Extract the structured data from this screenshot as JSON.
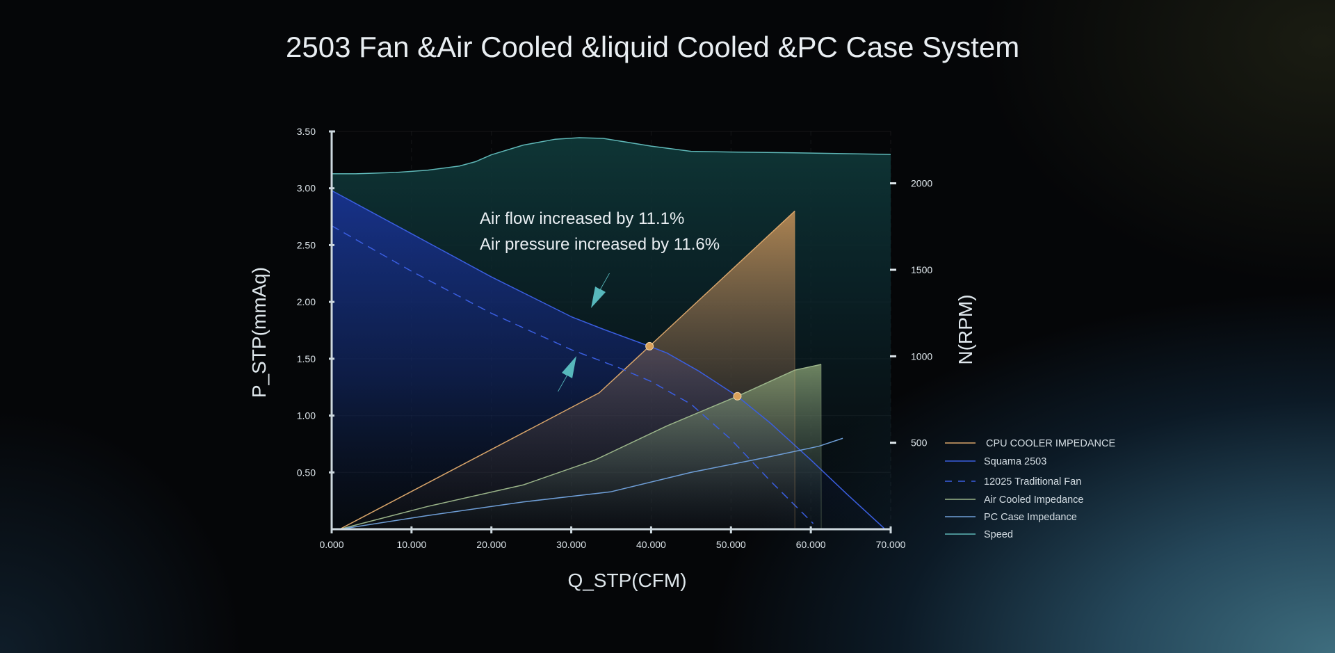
{
  "title": "2503 Fan &Air Cooled &liquid Cooled &PC Case System",
  "annotation": {
    "line1": "Air flow increased by 11.1%",
    "line2": "Air pressure increased by 11.6%"
  },
  "chart_data": {
    "type": "line",
    "title": "2503 Fan &Air Cooled &liquid Cooled &PC Case System",
    "xlabel": "Q_STP(CFM)",
    "ylabel": "P_STP(mmAq)",
    "y2label": "N(RPM)",
    "xlim": [
      0,
      70
    ],
    "ylim": [
      0,
      3.5
    ],
    "y2lim": [
      0,
      2300
    ],
    "xticks": [
      "0.000",
      "10.000",
      "20.000",
      "30.000",
      "40.000",
      "50.000",
      "60.000",
      "70.000"
    ],
    "yticks": [
      "0.50",
      "1.00",
      "1.50",
      "2.00",
      "2.50",
      "3.00",
      "3.50"
    ],
    "y2ticks": [
      "500",
      "1000",
      "1500",
      "2000"
    ],
    "grid": true,
    "legend_position": "right",
    "series": [
      {
        "name": "CPU COOLER IMPEDANCE",
        "axis": "left",
        "color": "#d9a56a",
        "style": "solid",
        "fill": "orange",
        "x": [
          1,
          33.5,
          39.8,
          58
        ],
        "y": [
          0,
          1.2,
          1.61,
          2.8
        ]
      },
      {
        "name": "Squama 2503",
        "axis": "left",
        "color": "#3a5ee0",
        "style": "solid",
        "fill": "blue",
        "x": [
          0,
          10,
          20,
          30,
          34,
          39.8,
          42,
          46,
          50.8,
          55,
          60,
          64.5,
          69.3
        ],
        "y": [
          2.98,
          2.6,
          2.22,
          1.87,
          1.76,
          1.61,
          1.55,
          1.39,
          1.17,
          0.93,
          0.61,
          0.31,
          0
        ]
      },
      {
        "name": "12025 Traditional Fan",
        "axis": "left",
        "color": "#3a5ee0",
        "style": "dashed",
        "fill": "none",
        "x": [
          0,
          10,
          20,
          30,
          36,
          40,
          45,
          50,
          55,
          60.3
        ],
        "y": [
          2.67,
          2.27,
          1.9,
          1.58,
          1.42,
          1.3,
          1.1,
          0.79,
          0.42,
          0.05
        ]
      },
      {
        "name": "Air Cooled Impedance",
        "axis": "left",
        "color": "#9bb58a",
        "style": "solid",
        "fill": "green",
        "x": [
          1,
          12,
          24,
          33,
          42,
          50.8,
          58,
          61.3
        ],
        "y": [
          0,
          0.2,
          0.39,
          0.61,
          0.91,
          1.17,
          1.4,
          1.45
        ]
      },
      {
        "name": "PC Case Impedance",
        "axis": "left",
        "color": "#6f9fd8",
        "style": "solid",
        "fill": "none",
        "x": [
          1,
          12,
          24,
          35,
          45,
          55,
          61,
          64
        ],
        "y": [
          0,
          0.12,
          0.24,
          0.33,
          0.5,
          0.64,
          0.73,
          0.8
        ]
      },
      {
        "name": "Speed",
        "axis": "right",
        "color": "#5fb8b8",
        "style": "solid",
        "fill": "teal",
        "x": [
          0,
          3,
          8,
          12,
          16,
          18,
          20,
          24,
          28,
          31,
          34,
          40,
          45,
          50,
          60,
          70
        ],
        "y": [
          2055,
          2055,
          2063,
          2076,
          2100,
          2125,
          2165,
          2221,
          2255,
          2264,
          2260,
          2215,
          2185,
          2181,
          2175,
          2167
        ]
      }
    ],
    "markers": [
      {
        "x": 39.8,
        "y": 1.61,
        "color": "#d9a05a"
      },
      {
        "x": 50.8,
        "y": 1.17,
        "color": "#d9a05a"
      }
    ]
  }
}
